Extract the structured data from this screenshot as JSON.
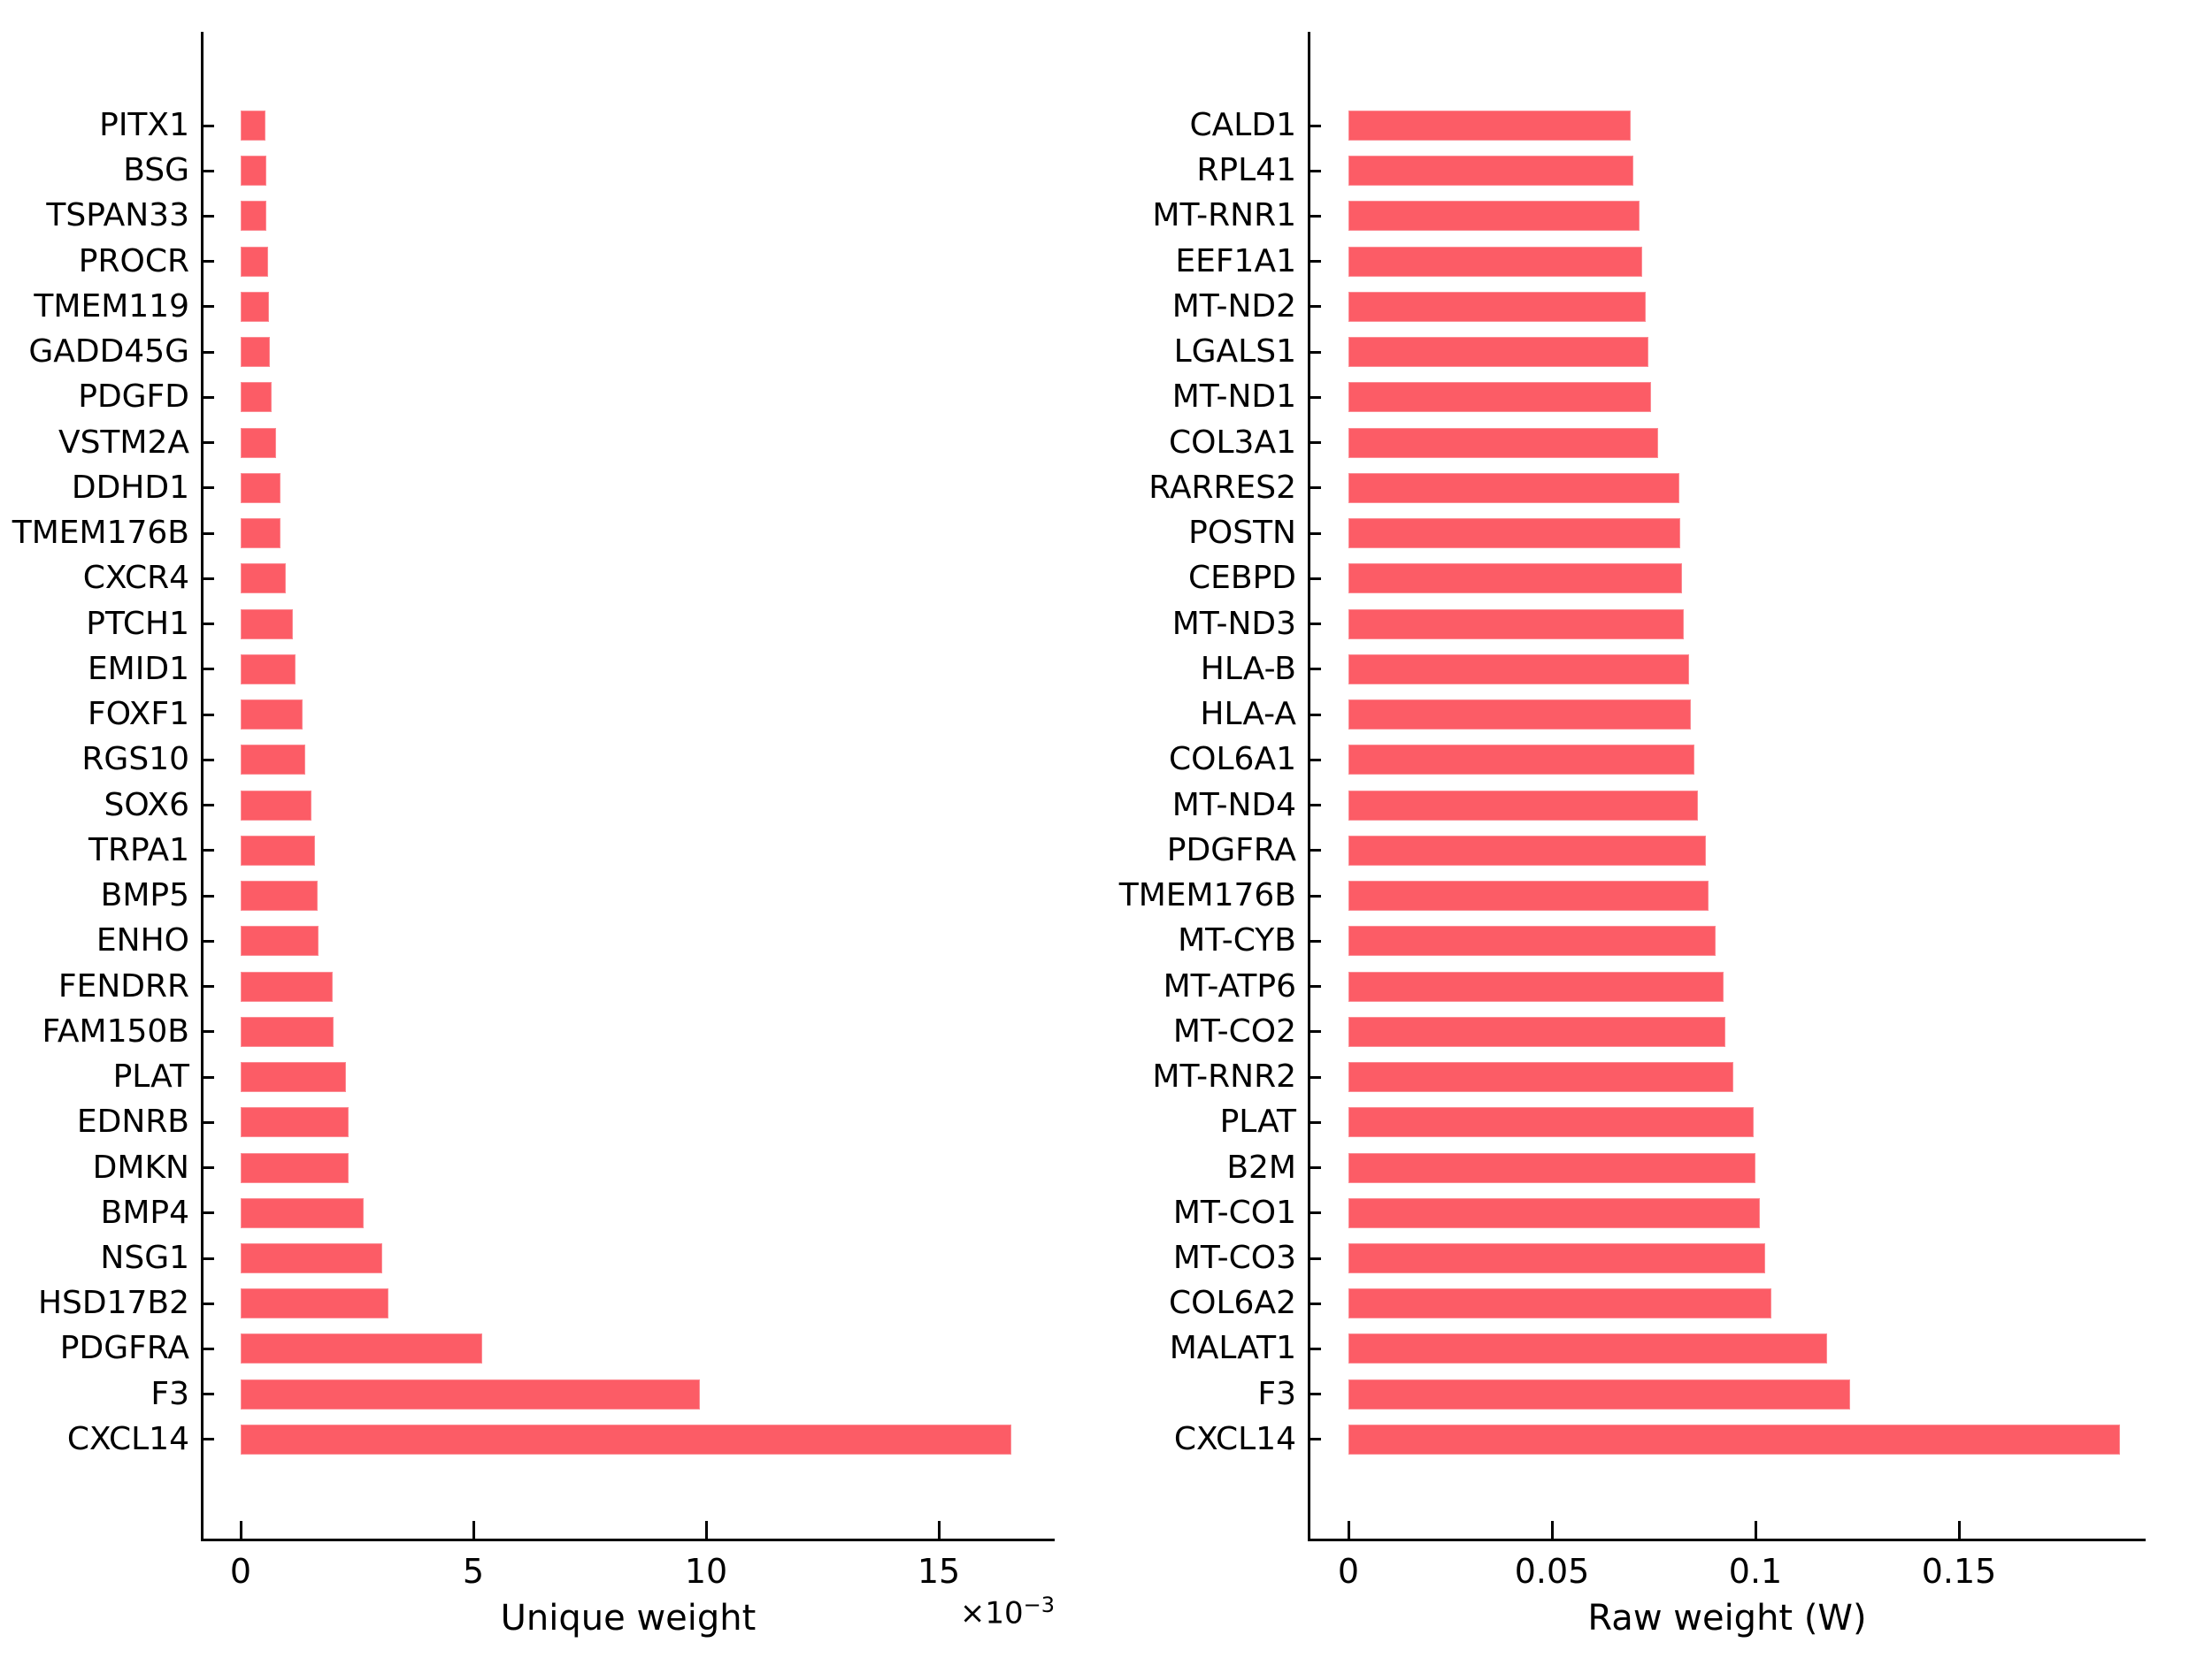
{
  "figure": {
    "background_color": "#ffffff",
    "bar_color": "#fc5c66",
    "axis_color": "#000000",
    "text_color": "#000000"
  },
  "chart_data": [
    {
      "type": "bar",
      "orientation": "horizontal",
      "title": "",
      "xlabel": "Unique weight",
      "ylabel": "",
      "offset_base": "×10",
      "offset_exponent": "−3",
      "value_multiplier": 0.001,
      "x_ticks": [
        0,
        5,
        10,
        15
      ],
      "x_tick_labels": [
        "0",
        "5",
        "10",
        "15"
      ],
      "xlim": [
        -0.85,
        17.4
      ],
      "grid": false,
      "legend": null,
      "categories": [
        "PITX1",
        "BSG",
        "TSPAN33",
        "PROCR",
        "TMEM119",
        "GADD45G",
        "PDGFD",
        "VSTM2A",
        "DDHD1",
        "TMEM176B",
        "CXCR4",
        "PTCH1",
        "EMID1",
        "FOXF1",
        "RGS10",
        "SOX6",
        "TRPA1",
        "BMP5",
        "ENHO",
        "FENDRR",
        "FAM150B",
        "PLAT",
        "EDNRB",
        "DMKN",
        "BMP4",
        "NSG1",
        "HSD17B2",
        "PDGFRA",
        "F3",
        "CXCL14"
      ],
      "values": [
        0.53,
        0.55,
        0.56,
        0.58,
        0.6,
        0.63,
        0.67,
        0.76,
        0.85,
        0.86,
        0.97,
        1.12,
        1.17,
        1.33,
        1.39,
        1.52,
        1.59,
        1.66,
        1.68,
        1.98,
        2.0,
        2.26,
        2.31,
        2.32,
        2.64,
        3.05,
        3.18,
        5.19,
        9.87,
        16.55
      ]
    },
    {
      "type": "bar",
      "orientation": "horizontal",
      "title": "",
      "xlabel": "Raw weight (W)",
      "ylabel": "",
      "offset_base": "",
      "offset_exponent": "",
      "value_multiplier": 1,
      "x_ticks": [
        0,
        0.05,
        0.1,
        0.15
      ],
      "x_tick_labels": [
        "0",
        "0.05",
        "0.1",
        "0.15"
      ],
      "xlim": [
        -0.01,
        0.199
      ],
      "grid": false,
      "legend": null,
      "categories": [
        "CALD1",
        "RPL41",
        "MT-RNR1",
        "EEF1A1",
        "MT-ND2",
        "LGALS1",
        "MT-ND1",
        "COL3A1",
        "RARRES2",
        "POSTN",
        "CEBPD",
        "MT-ND3",
        "HLA-B",
        "HLA-A",
        "COL6A1",
        "MT-ND4",
        "PDGFRA",
        "TMEM176B",
        "MT-CYB",
        "MT-ATP6",
        "MT-CO2",
        "MT-RNR2",
        "PLAT",
        "B2M",
        "MT-CO1",
        "MT-CO3",
        "COL6A2",
        "MALAT1",
        "F3",
        "CXCL14"
      ],
      "values": [
        0.0693,
        0.0699,
        0.0715,
        0.0721,
        0.0731,
        0.0737,
        0.0744,
        0.0761,
        0.0814,
        0.0816,
        0.082,
        0.0823,
        0.0837,
        0.0842,
        0.0851,
        0.0859,
        0.0878,
        0.0884,
        0.0902,
        0.0921,
        0.0926,
        0.0946,
        0.0996,
        0.0999,
        0.1011,
        0.1024,
        0.104,
        0.1176,
        0.1233,
        0.1896
      ]
    }
  ]
}
